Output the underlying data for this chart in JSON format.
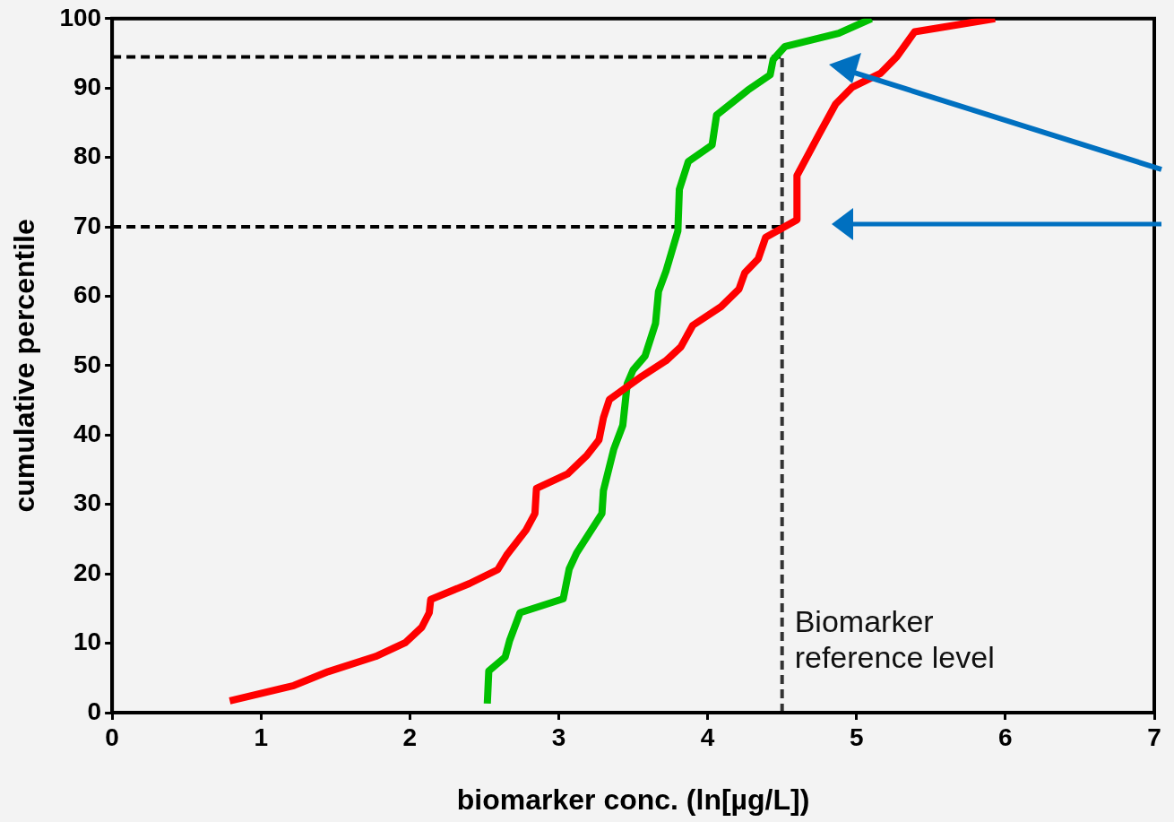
{
  "chart_data": {
    "type": "line",
    "xlabel": "biomarker conc. (ln[µg/L])",
    "ylabel": "cumulative percentile",
    "xlim": [
      0,
      7
    ],
    "xticks": [
      0,
      1,
      2,
      3,
      4,
      5,
      6,
      7
    ],
    "ylim": [
      0,
      100
    ],
    "yticks": [
      0,
      10,
      20,
      30,
      40,
      50,
      60,
      70,
      80,
      90,
      100
    ],
    "grid": false,
    "legend": false,
    "marker": "none",
    "line_style": "solid",
    "series": [
      {
        "color": "#ff0000",
        "x": [
          0.79,
          1.22,
          1.45,
          1.77,
          1.97,
          2.08,
          2.13,
          2.14,
          2.4,
          2.59,
          2.65,
          2.78,
          2.84,
          2.85,
          3.06,
          3.19,
          3.27,
          3.3,
          3.34,
          3.56,
          3.72,
          3.82,
          3.9,
          4.09,
          4.21,
          4.25,
          4.34,
          4.39,
          4.6,
          4.6,
          4.75,
          4.86,
          4.97,
          5.16,
          5.27,
          5.39,
          5.93
        ],
        "values": [
          1.7,
          3.9,
          5.9,
          8.1,
          10.1,
          12.3,
          14.4,
          16.3,
          18.6,
          20.6,
          22.7,
          26.3,
          28.7,
          32.3,
          34.4,
          37.1,
          39.3,
          42.5,
          45.1,
          48.5,
          50.7,
          52.7,
          55.8,
          58.5,
          61,
          63.4,
          65.4,
          68.5,
          71,
          77.4,
          83.4,
          87.7,
          90.1,
          92.1,
          94.5,
          98.1,
          100
        ]
      },
      {
        "color": "#00c000",
        "x": [
          2.52,
          2.53,
          2.64,
          2.67,
          2.74,
          3.03,
          3.07,
          3.12,
          3.29,
          3.3,
          3.37,
          3.43,
          3.46,
          3.5,
          3.58,
          3.65,
          3.67,
          3.72,
          3.8,
          3.81,
          3.87,
          4.03,
          4.06,
          4.27,
          4.42,
          4.44,
          4.52,
          4.88,
          5.1
        ],
        "values": [
          1.3,
          6,
          8,
          10.4,
          14.4,
          16.4,
          20.7,
          23,
          28.7,
          32,
          38,
          41.4,
          47.4,
          49.4,
          51.4,
          56.1,
          60.7,
          63.6,
          69.4,
          75.4,
          79.4,
          81.8,
          86.1,
          89.7,
          91.9,
          94.1,
          96,
          97.9,
          100
        ]
      }
    ],
    "ref_lines": [
      {
        "axis": "x",
        "value": 4.5,
        "label": "Biomarker reference level",
        "color": "#333333",
        "line_style": "dashed"
      },
      {
        "axis": "y",
        "value": 94.5,
        "color": "#000000",
        "line_style": "dashed"
      },
      {
        "axis": "y",
        "value": 70,
        "color": "#000000",
        "line_style": "dashed"
      }
    ]
  }
}
